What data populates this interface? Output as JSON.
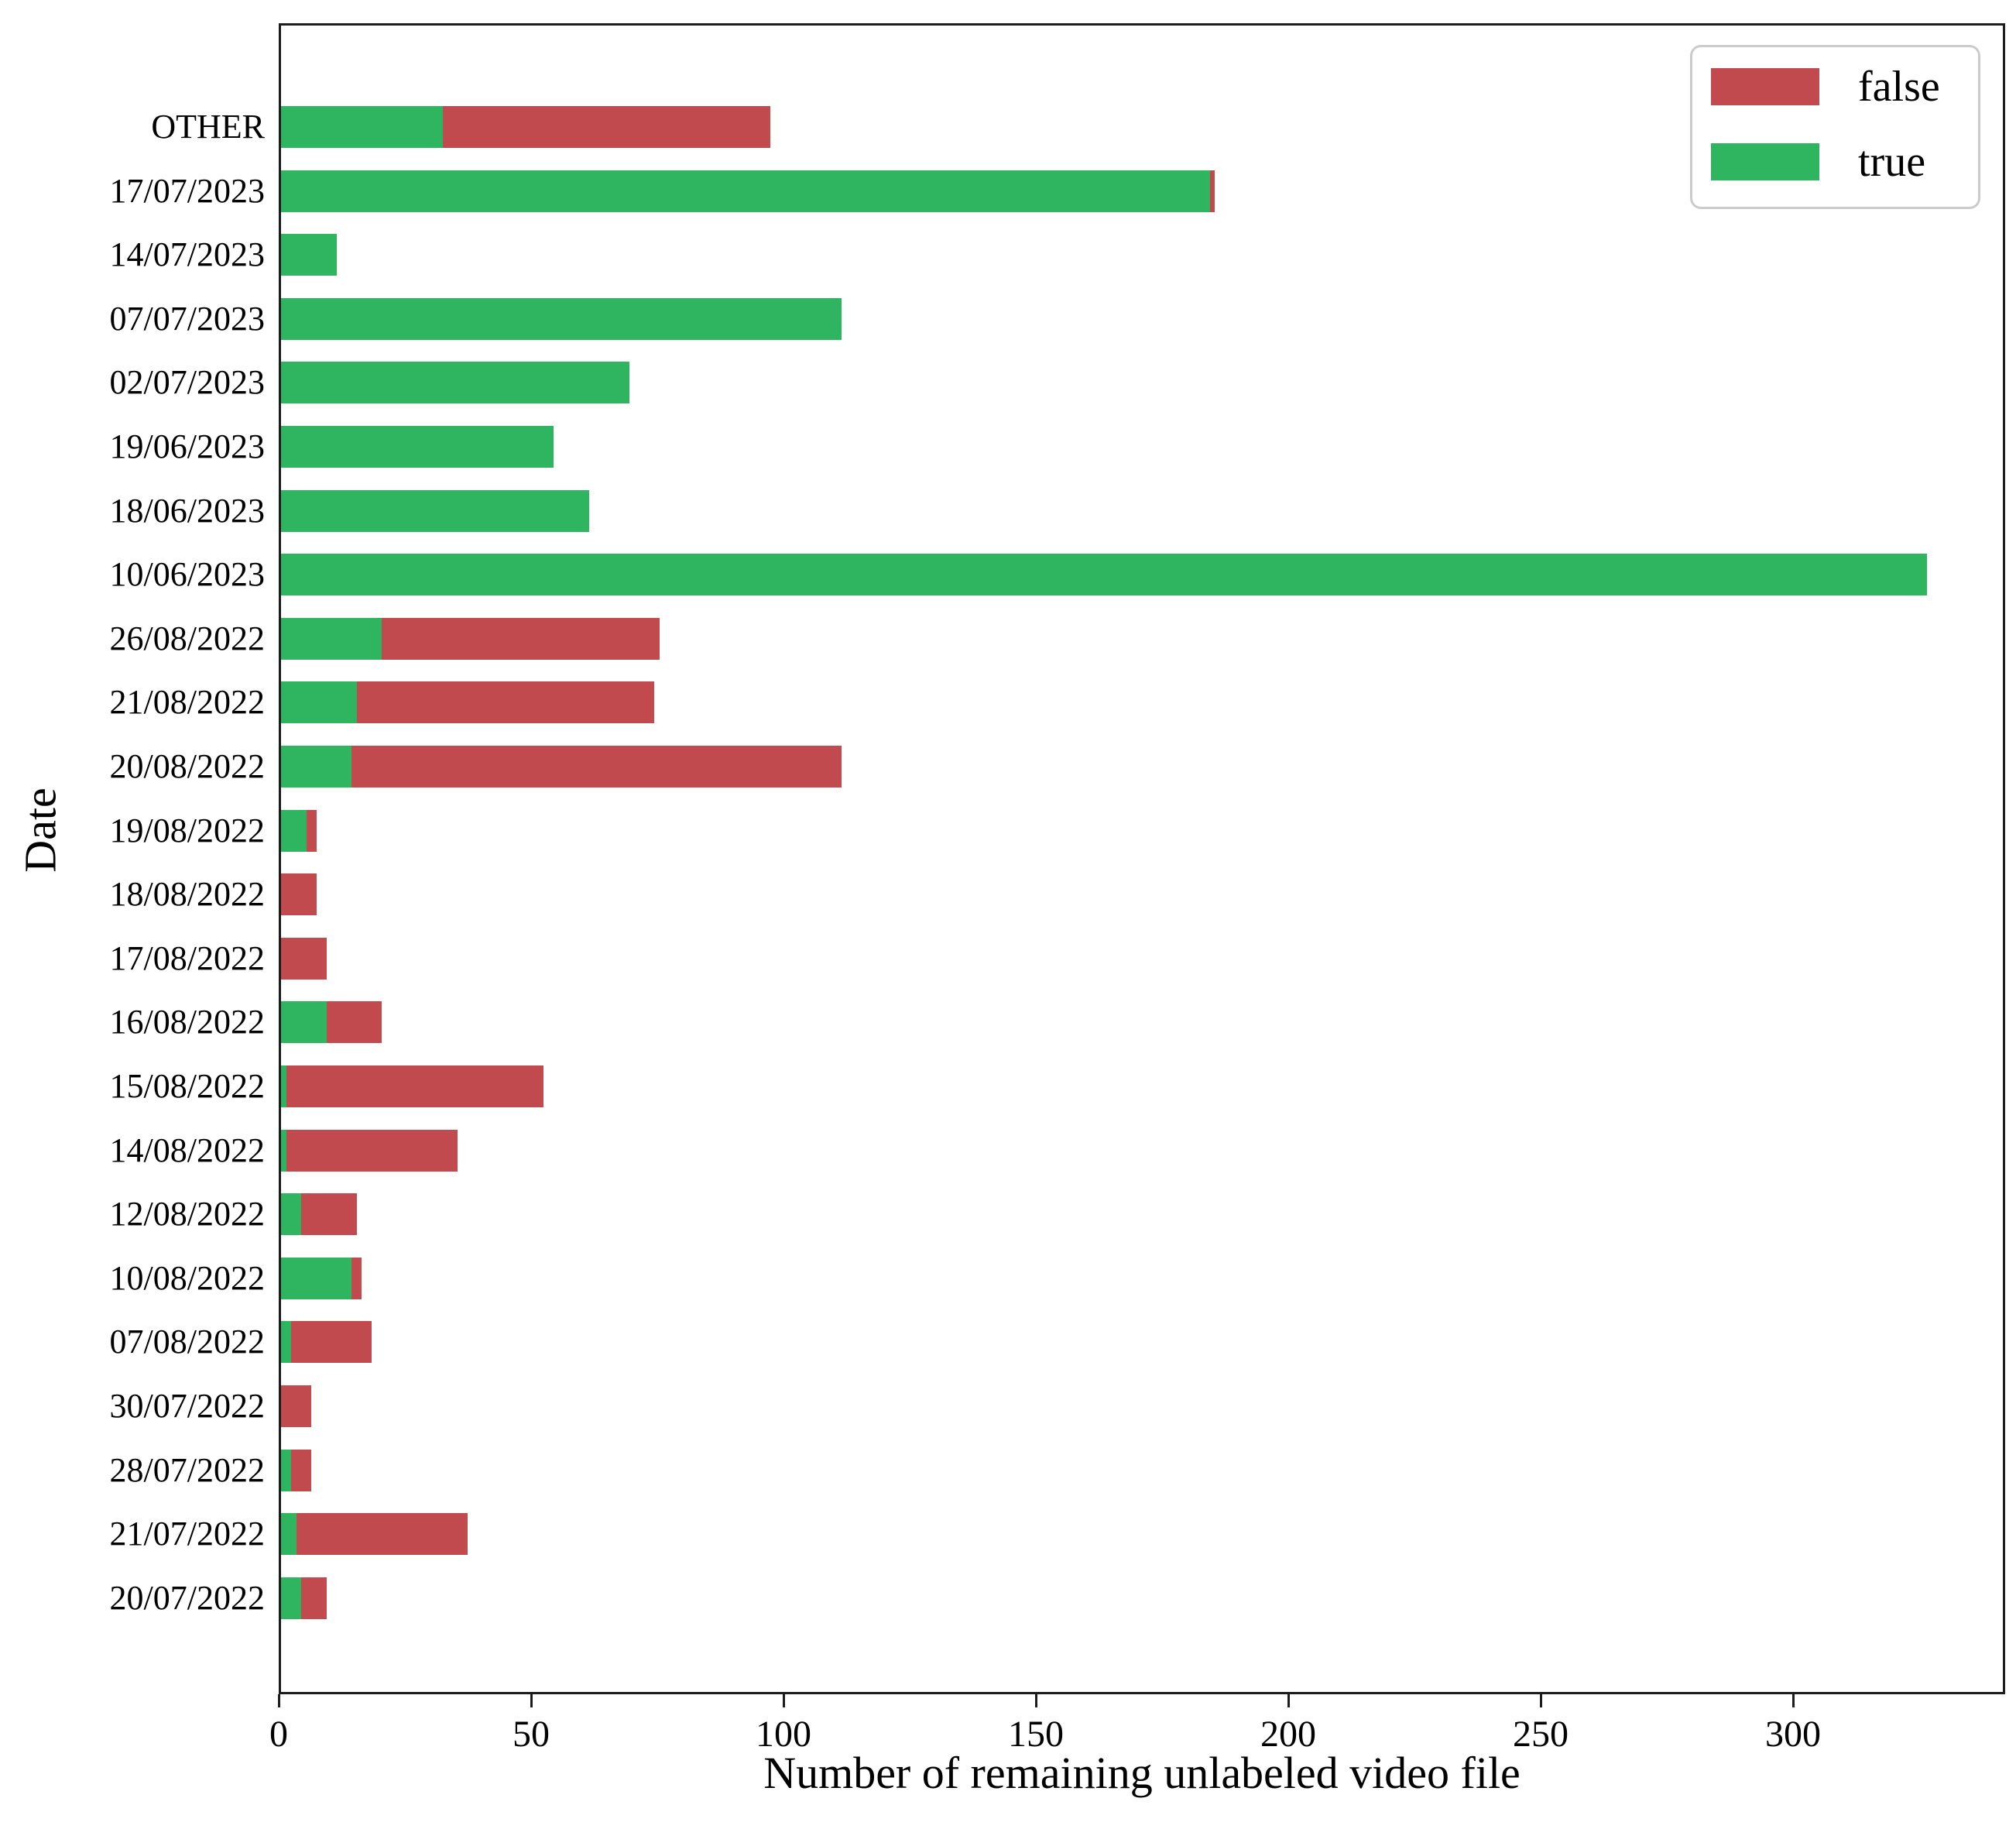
{
  "chart_data": {
    "type": "bar",
    "orientation": "horizontal",
    "stacked": true,
    "title": "",
    "xlabel": "Number of remaining unlabeled video file",
    "ylabel": "Date",
    "categories": [
      "OTHER",
      "17/07/2023",
      "14/07/2023",
      "07/07/2023",
      "02/07/2023",
      "19/06/2023",
      "18/06/2023",
      "10/06/2023",
      "26/08/2022",
      "21/08/2022",
      "20/08/2022",
      "19/08/2022",
      "18/08/2022",
      "17/08/2022",
      "16/08/2022",
      "15/08/2022",
      "14/08/2022",
      "12/08/2022",
      "10/08/2022",
      "07/08/2022",
      "30/07/2022",
      "28/07/2022",
      "21/07/2022",
      "20/07/2022"
    ],
    "series": [
      {
        "name": "false",
        "color": "#c04a4d",
        "values": [
          65,
          1,
          0,
          0,
          0,
          0,
          0,
          0,
          55,
          59,
          97,
          2,
          7,
          9,
          11,
          51,
          34,
          11,
          2,
          16,
          6,
          4,
          34,
          5
        ]
      },
      {
        "name": "true",
        "color": "#2fb45f",
        "values": [
          32,
          184,
          11,
          111,
          69,
          54,
          61,
          326,
          20,
          15,
          14,
          5,
          0,
          0,
          9,
          1,
          1,
          4,
          14,
          2,
          0,
          2,
          3,
          4
        ]
      }
    ],
    "stack_order": [
      "true",
      "false"
    ],
    "legend_position": "upper right",
    "xlim": [
      0,
      342
    ],
    "xticks": [
      0,
      50,
      100,
      150,
      200,
      250,
      300
    ],
    "grid": false
  },
  "colors": {
    "axis": "#1c1c1c",
    "background": "#ffffff",
    "legend_border": "#cbcbcb"
  }
}
